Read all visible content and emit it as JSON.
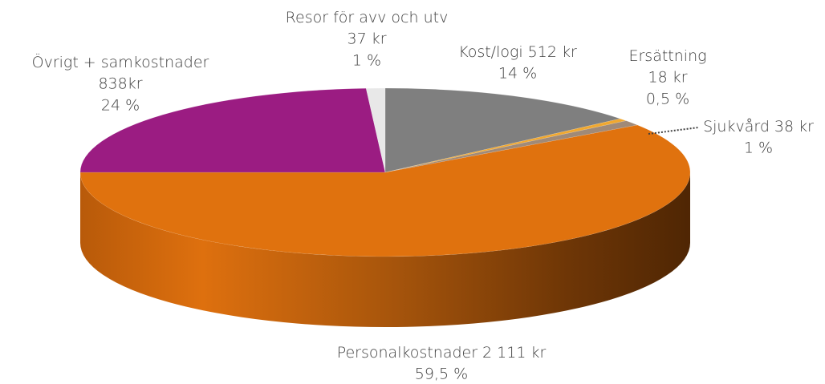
{
  "chart_data": {
    "type": "pie3d",
    "categories": [
      "Kost/logi",
      "Ersättning",
      "Sjukvård",
      "Personalkostnader",
      "Övrigt + samkostnader",
      "Resor för avv och utv"
    ],
    "amount_labels": [
      "512 kr",
      "18 kr",
      "38 kr",
      "2 111 kr",
      "838kr",
      "37 kr"
    ],
    "values": [
      14,
      0.5,
      1,
      59.5,
      24,
      1
    ],
    "value_labels": [
      "14 %",
      "0,5 %",
      "1 %",
      "59,5 %",
      "24 %",
      "1 %"
    ],
    "colors": [
      "#7f7f7f",
      "#f0a830",
      "#a08a78",
      "#e0720e",
      "#9b1c82",
      "#e8e8e8"
    ]
  }
}
